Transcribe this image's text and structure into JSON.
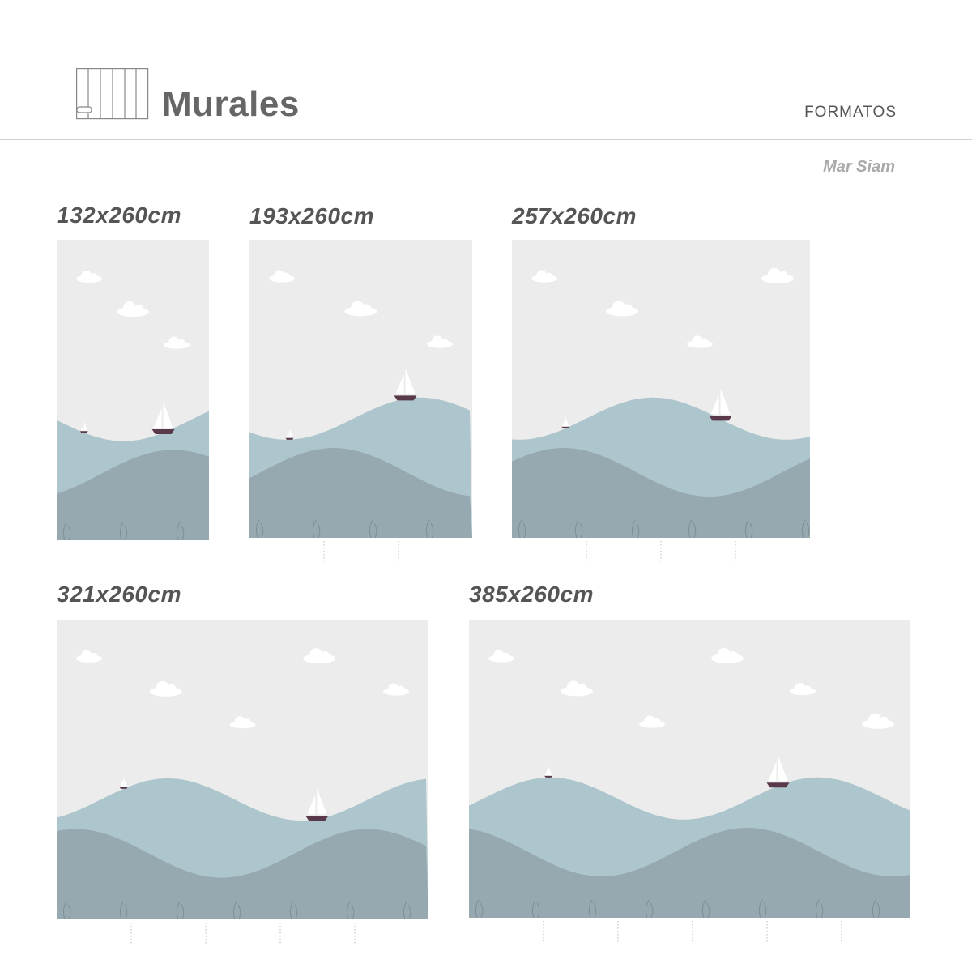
{
  "header": {
    "title": "Murales",
    "section": "FORMATOS",
    "icon": "wallpaper-roll-icon"
  },
  "design_name": "Mar Siam",
  "colors": {
    "sky": "#ececec",
    "light_wave": "#adc5cc",
    "dark_wave": "#97a9b0",
    "cloud": "#ffffff",
    "boat_hull": "#5a3a4a",
    "text": "#555555"
  },
  "formats": [
    {
      "label": "132x260cm"
    },
    {
      "label": "193x260cm"
    },
    {
      "label": "257x260cm"
    },
    {
      "label": "321x260cm"
    },
    {
      "label": "385x260cm"
    }
  ]
}
